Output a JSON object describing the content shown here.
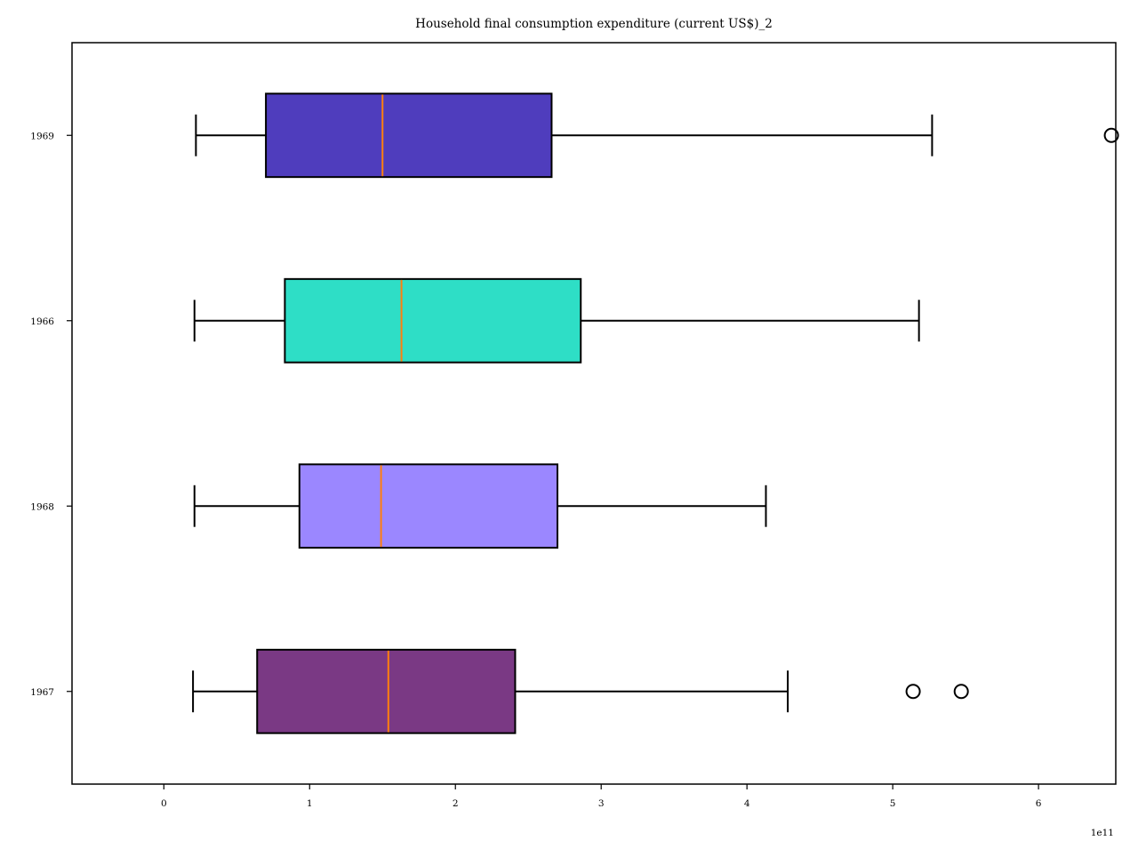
{
  "chart_data": {
    "type": "boxplot",
    "orientation": "horizontal",
    "title": "Household final consumption expenditure (current US$)_2",
    "xlabel": "",
    "ylabel": "",
    "x_offset_label": "1e11",
    "x_scale": 100000000000,
    "xlim": [
      -0.63,
      6.53
    ],
    "xticks": [
      0,
      1,
      2,
      3,
      4,
      5,
      6
    ],
    "xtick_labels": [
      "0",
      "1",
      "2",
      "3",
      "4",
      "5",
      "6"
    ],
    "grid": false,
    "legend": "none",
    "categories": [
      "1967",
      "1968",
      "1966",
      "1969"
    ],
    "boxes": [
      {
        "label": "1967",
        "whisker_low": 0.2,
        "q1": 0.64,
        "median": 1.54,
        "q3": 2.41,
        "whisker_high": 4.28,
        "fliers": [
          5.14,
          5.47
        ],
        "color": "#7a3984"
      },
      {
        "label": "1968",
        "whisker_low": 0.21,
        "q1": 0.93,
        "median": 1.49,
        "q3": 2.7,
        "whisker_high": 4.13,
        "fliers": [],
        "color": "#9b87ff"
      },
      {
        "label": "1966",
        "whisker_low": 0.21,
        "q1": 0.83,
        "median": 1.63,
        "q3": 2.86,
        "whisker_high": 5.18,
        "fliers": [],
        "color": "#2edec6"
      },
      {
        "label": "1969",
        "whisker_low": 0.22,
        "q1": 0.7,
        "median": 1.5,
        "q3": 2.66,
        "whisker_high": 5.27,
        "fliers": [
          6.5
        ],
        "color": "#4f3dbd"
      }
    ],
    "median_color": "#ff7f0e"
  }
}
